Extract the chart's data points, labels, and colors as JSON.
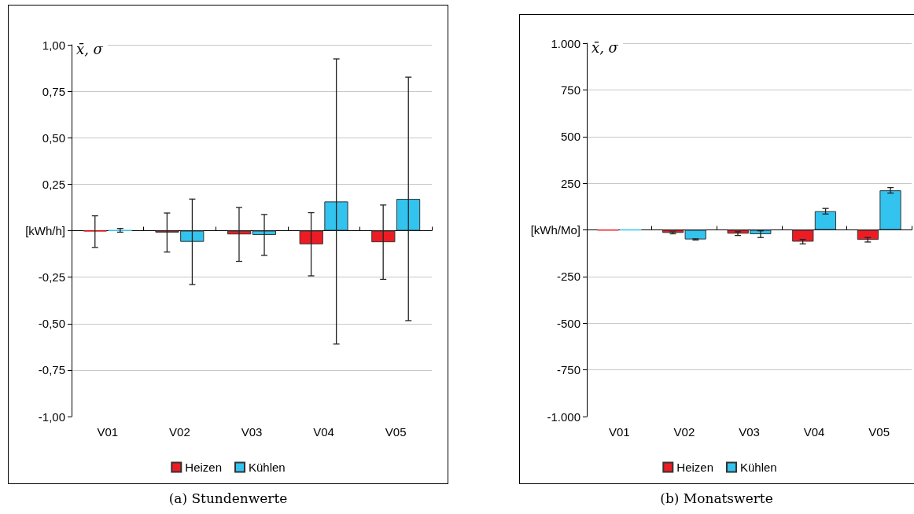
{
  "chart_data": [
    {
      "type": "bar",
      "title": "(a) Stundenwerte",
      "ylabel": "x̄, σ",
      "categories": [
        "V01",
        "V02",
        "V03",
        "V04",
        "V05"
      ],
      "series": [
        {
          "name": "Heizen",
          "color": "#ed1c24",
          "values": [
            -0.005,
            -0.01,
            -0.02,
            -0.073,
            -0.062
          ],
          "errors": [
            0.085,
            0.105,
            0.145,
            0.17,
            0.2
          ]
        },
        {
          "name": "Kühlen",
          "color": "#33c3ef",
          "values": [
            0.002,
            -0.06,
            -0.023,
            0.157,
            0.171
          ],
          "errors": [
            0.01,
            0.23,
            0.11,
            0.767,
            0.655
          ]
        }
      ],
      "ylim": [
        -1,
        1
      ],
      "yticks": [
        {
          "value": -1,
          "label": "-1,00"
        },
        {
          "value": -0.75,
          "label": "-0,75"
        },
        {
          "value": -0.5,
          "label": "-0,50"
        },
        {
          "value": -0.25,
          "label": "-0,25"
        },
        {
          "value": 0,
          "label": "[kWh/h]"
        },
        {
          "value": 0.25,
          "label": "0,25"
        },
        {
          "value": 0.5,
          "label": "0,50"
        },
        {
          "value": 0.75,
          "label": "0,75"
        },
        {
          "value": 1,
          "label": "1,00"
        }
      ],
      "grid": "y",
      "legend": "bottom"
    },
    {
      "type": "bar",
      "title": "(b) Monatswerte",
      "ylabel": "x̄, σ",
      "categories": [
        "V01",
        "V02",
        "V03",
        "V04",
        "V05"
      ],
      "series": [
        {
          "name": "Heizen",
          "color": "#ed1c24",
          "values": [
            -3,
            -16,
            -20,
            -63,
            -53
          ],
          "errors": [
            null,
            5,
            10,
            12,
            12
          ]
        },
        {
          "name": "Kühlen",
          "color": "#33c3ef",
          "values": [
            0,
            -51,
            -23,
            100,
            212
          ],
          "errors": [
            null,
            3,
            18,
            15,
            15
          ]
        }
      ],
      "ylim": [
        -1000,
        1000
      ],
      "yticks": [
        {
          "value": -1000,
          "label": "-1.000"
        },
        {
          "value": -750,
          "label": "-750"
        },
        {
          "value": -500,
          "label": "-500"
        },
        {
          "value": -250,
          "label": "-250"
        },
        {
          "value": 0,
          "label": "[kWh/Mo]"
        },
        {
          "value": 250,
          "label": "250"
        },
        {
          "value": 500,
          "label": "500"
        },
        {
          "value": 750,
          "label": "750"
        },
        {
          "value": 1000,
          "label": "1.000"
        }
      ],
      "grid": "y",
      "legend": "bottom"
    }
  ]
}
